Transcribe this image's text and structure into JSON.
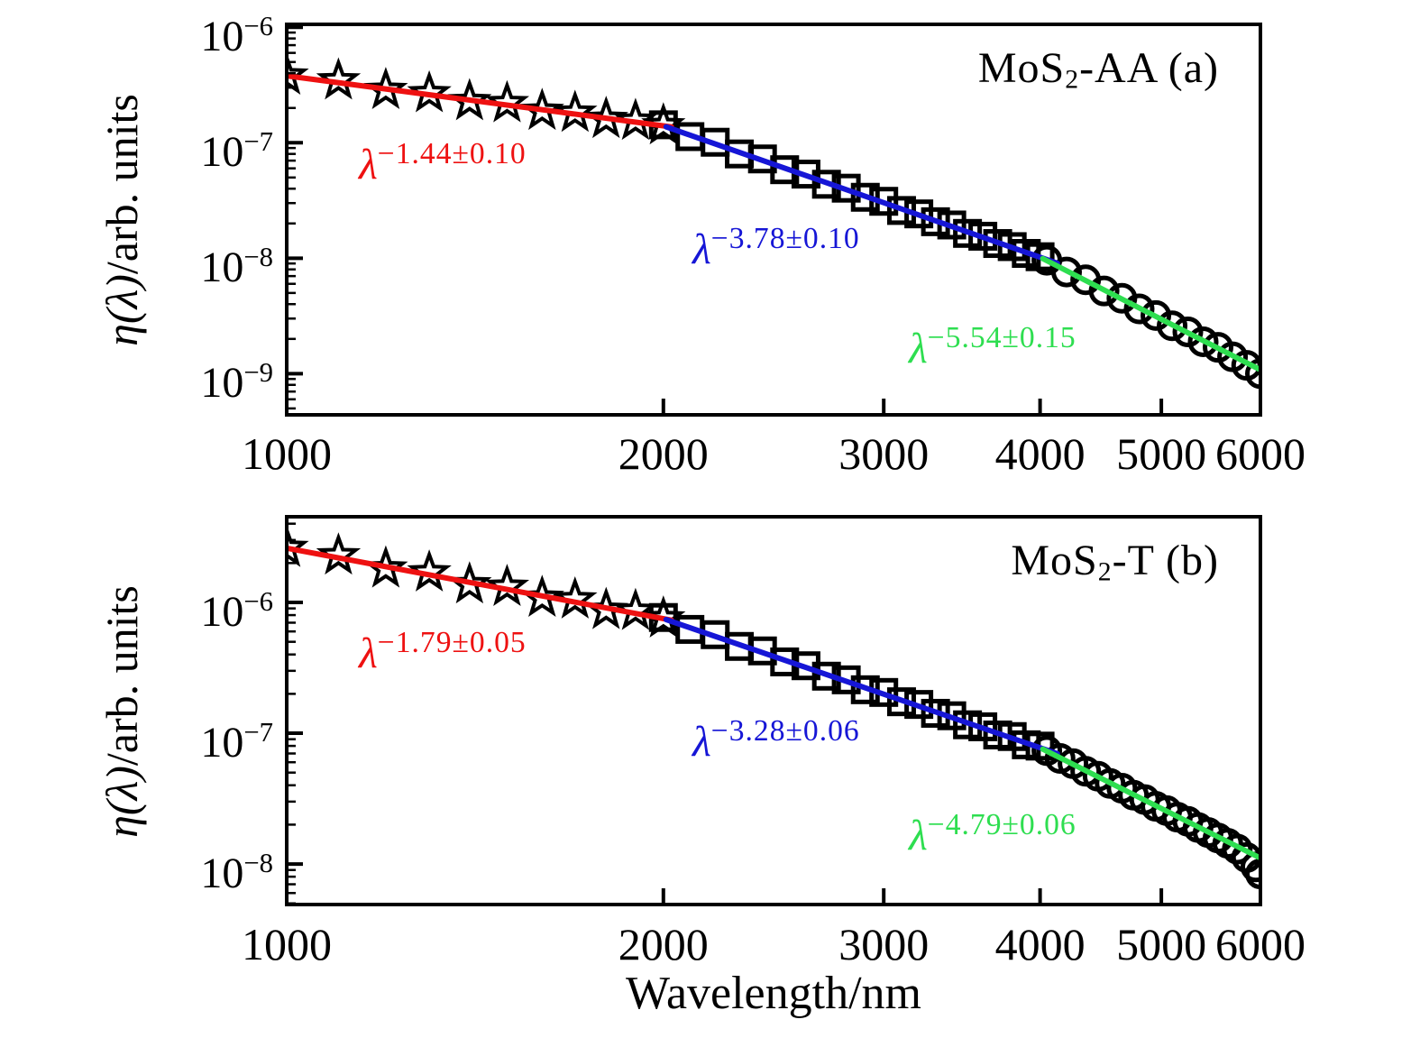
{
  "figure": {
    "background": "#ffffff",
    "xlabel": "Wavelength/nm",
    "ylabel_math": "η(λ)",
    "ylabel_rest": "/arb. units"
  },
  "chart_data": [
    {
      "type": "scatter",
      "panel": "a",
      "title_prefix": "MoS",
      "title_sub": "2",
      "title_suffix": "-AA (a)",
      "full_title": "MoS2-AA (a)",
      "x_axis": {
        "scale": "log",
        "label": "Wavelength/nm",
        "range": [
          1000,
          6000
        ],
        "ticks": [
          1000,
          2000,
          3000,
          4000,
          5000,
          6000
        ],
        "tick_labels": [
          "1000",
          "2000",
          "3000",
          "4000",
          "5000",
          "6000"
        ]
      },
      "y_axis": {
        "scale": "log",
        "label": "η(λ)/arb. units",
        "range": [
          4.4e-10,
          1.06e-06
        ],
        "tick_base": "10",
        "tick_exponents": [
          "−6",
          "−7",
          "−8",
          "−9"
        ],
        "tick_values": [
          1e-06,
          1e-07,
          1e-08,
          1e-09
        ]
      },
      "series": [
        {
          "name": "short-wavelength-data",
          "marker": "star",
          "x": [
            1000,
            1100,
            1200,
            1300,
            1400,
            1500,
            1600,
            1700,
            1800,
            1900,
            2000
          ],
          "y": [
            3.8e-07,
            3.45e-07,
            2.85e-07,
            2.67e-07,
            2.28e-07,
            2.19e-07,
            1.88e-07,
            1.81e-07,
            1.6e-07,
            1.54e-07,
            1.41e-07
          ]
        },
        {
          "name": "mid-wavelength-data",
          "marker": "square",
          "x": [
            2000,
            2100,
            2200,
            2300,
            2400,
            2500,
            2600,
            2700,
            2800,
            2900,
            3000,
            3100,
            3200,
            3300,
            3400,
            3500,
            3600,
            3700,
            3800,
            3900,
            4000
          ],
          "y": [
            1.43e-07,
            1.13e-07,
            1.01e-07,
            8e-08,
            7.24e-08,
            5.84e-08,
            5.35e-08,
            4.37e-08,
            4.04e-08,
            3.37e-08,
            3.11e-08,
            2.59e-08,
            2.42e-08,
            2.07e-08,
            1.94e-08,
            1.64e-08,
            1.55e-08,
            1.34e-08,
            1.26e-08,
            1.1e-08,
            1.03e-08
          ]
        },
        {
          "name": "long-wavelength-data",
          "marker": "circle",
          "x": [
            4050,
            4200,
            4350,
            4500,
            4650,
            4800,
            4950,
            5100,
            5250,
            5400,
            5550,
            5700,
            5850,
            6000
          ],
          "y": [
            9.6e-09,
            7.6e-09,
            6.5e-09,
            5.2e-09,
            4.5e-09,
            3.64e-09,
            3.19e-09,
            2.6e-09,
            2.3e-09,
            1.89e-09,
            1.69e-09,
            1.4e-09,
            1.18e-09,
            1e-09
          ]
        }
      ],
      "fits": [
        {
          "name": "fit-short",
          "color": "#ee1111",
          "label_symbol": "λ",
          "exponent_text": "−1.44±0.10",
          "exponent": -1.44,
          "uncertainty": 0.1,
          "x_start": 1000,
          "x_end": 2030,
          "ref_x": 1000,
          "ref_y": 3.8e-07
        },
        {
          "name": "fit-mid",
          "color": "#1616d6",
          "label_symbol": "λ",
          "exponent_text": "−3.78±0.10",
          "exponent": -3.78,
          "uncertainty": 0.1,
          "x_start": 2010,
          "x_end": 4130,
          "ref_x": 2000,
          "ref_y": 1.4e-07
        },
        {
          "name": "fit-long",
          "color": "#2ede50",
          "label_symbol": "λ",
          "exponent_text": "−5.54±0.15",
          "exponent": -5.54,
          "uncertainty": 0.15,
          "x_start": 4020,
          "x_end": 5980,
          "ref_x": 4000,
          "ref_y": 1.02e-08
        }
      ]
    },
    {
      "type": "scatter",
      "panel": "b",
      "title_prefix": "MoS",
      "title_sub": "2",
      "title_suffix": "-T (b)",
      "full_title": "MoS2-T (b)",
      "x_axis": {
        "scale": "log",
        "label": "Wavelength/nm",
        "range": [
          1000,
          6000
        ],
        "ticks": [
          1000,
          2000,
          3000,
          4000,
          5000,
          6000
        ],
        "tick_labels": [
          "1000",
          "2000",
          "3000",
          "4000",
          "5000",
          "6000"
        ]
      },
      "y_axis": {
        "scale": "log",
        "label": "η(λ)/arb. units",
        "range": [
          4.9e-09,
          4.52e-06
        ],
        "tick_base": "10",
        "tick_exponents": [
          "−6",
          "−7",
          "−8"
        ],
        "tick_values": [
          1e-06,
          1e-07,
          1e-08
        ]
      },
      "series": [
        {
          "name": "short-wavelength-data",
          "marker": "star",
          "x": [
            1000,
            1100,
            1200,
            1300,
            1400,
            1500,
            1600,
            1700,
            1800,
            1900,
            2000
          ],
          "y": [
            2.6e-06,
            2.28e-06,
            1.81e-06,
            1.69e-06,
            1.37e-06,
            1.31e-06,
            1.08e-06,
            1.05e-06,
            8.72e-07,
            8.57e-07,
            7.52e-07
          ]
        },
        {
          "name": "mid-wavelength-data",
          "marker": "square",
          "x": [
            2000,
            2100,
            2200,
            2300,
            2400,
            2500,
            2600,
            2700,
            2800,
            2900,
            3000,
            3100,
            3200,
            3300,
            3400,
            3500,
            3600,
            3700,
            3800,
            3900,
            4000
          ],
          "y": [
            7.67e-07,
            6.22e-07,
            5.67e-07,
            4.61e-07,
            4.26e-07,
            3.51e-07,
            3.28e-07,
            2.73e-07,
            2.56e-07,
            2.15e-07,
            2.05e-07,
            1.74e-07,
            1.66e-07,
            1.42e-07,
            1.36e-07,
            1.16e-07,
            1.12e-07,
            9.7e-08,
            9.43e-08,
            8.16e-08,
            7.97e-08
          ]
        },
        {
          "name": "long-wavelength-data",
          "marker": "circle",
          "x": [
            4050,
            4150,
            4250,
            4350,
            4450,
            4550,
            4650,
            4750,
            4850,
            4950,
            5050,
            5150,
            5250,
            5350,
            5450,
            5550,
            5650,
            5750,
            5850,
            5950,
            6000
          ],
          "y": [
            7.36e-08,
            6.42e-08,
            5.85e-08,
            5.12e-08,
            4.69e-08,
            4.13e-08,
            3.8e-08,
            3.36e-08,
            3.11e-08,
            2.76e-08,
            2.56e-08,
            2.28e-08,
            2.12e-08,
            1.9e-08,
            1.74e-08,
            1.58e-08,
            1.44e-08,
            1.3e-08,
            1.12e-08,
            9.5e-09,
            8.4e-09
          ]
        }
      ],
      "fits": [
        {
          "name": "fit-short",
          "color": "#ee1111",
          "label_symbol": "λ",
          "exponent_text": "−1.79±0.05",
          "exponent": -1.79,
          "uncertainty": 0.05,
          "x_start": 1000,
          "x_end": 2030,
          "ref_x": 1000,
          "ref_y": 2.6e-06
        },
        {
          "name": "fit-mid",
          "color": "#1616d6",
          "label_symbol": "λ",
          "exponent_text": "−3.28±0.06",
          "exponent": -3.28,
          "uncertainty": 0.06,
          "x_start": 2010,
          "x_end": 4130,
          "ref_x": 2000,
          "ref_y": 7.52e-07
        },
        {
          "name": "fit-long",
          "color": "#2ede50",
          "label_symbol": "λ",
          "exponent_text": "−4.79±0.06",
          "exponent": -4.79,
          "uncertainty": 0.06,
          "x_start": 4020,
          "x_end": 5980,
          "ref_x": 4000,
          "ref_y": 7.74e-08
        }
      ]
    }
  ]
}
